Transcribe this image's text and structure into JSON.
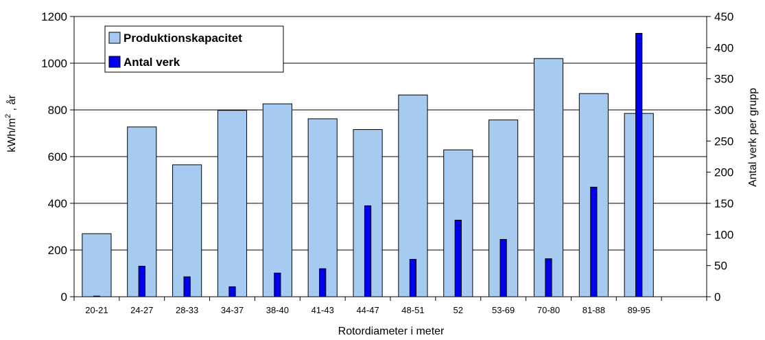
{
  "chart_data": {
    "type": "bar",
    "categories": [
      "20-21",
      "24-27",
      "28-33",
      "34-37",
      "38-40",
      "41-43",
      "44-47",
      "48-51",
      "52",
      "53-69",
      "70-80",
      "81-88",
      "89-95",
      ""
    ],
    "series": [
      {
        "name": "Produktionskapacitet",
        "axis": "left",
        "color": "#a6caf0",
        "values": [
          270,
          727,
          565,
          798,
          826,
          762,
          716,
          864,
          629,
          757,
          1020,
          870,
          785,
          null
        ]
      },
      {
        "name": "Antal verk",
        "axis": "right",
        "color": "#0000ee",
        "values": [
          1,
          49,
          32,
          16,
          38,
          45,
          146,
          60,
          123,
          92,
          61,
          176,
          423,
          null
        ]
      }
    ],
    "xlabel": "Rotordiameter i meter",
    "ylabel": "kWh/m² , år",
    "ylabel_parts": {
      "base": "kWh/m",
      "sup": "2",
      "tail": " , år"
    },
    "y2label": "Antal verk per grupp",
    "ylim": [
      0,
      1200
    ],
    "y2lim": [
      0,
      450
    ],
    "yticks": [
      0,
      200,
      400,
      600,
      800,
      1000,
      1200
    ],
    "y2ticks": [
      0,
      50,
      100,
      150,
      200,
      250,
      300,
      350,
      400,
      450
    ],
    "grid": true,
    "legend_position": "top-left"
  }
}
